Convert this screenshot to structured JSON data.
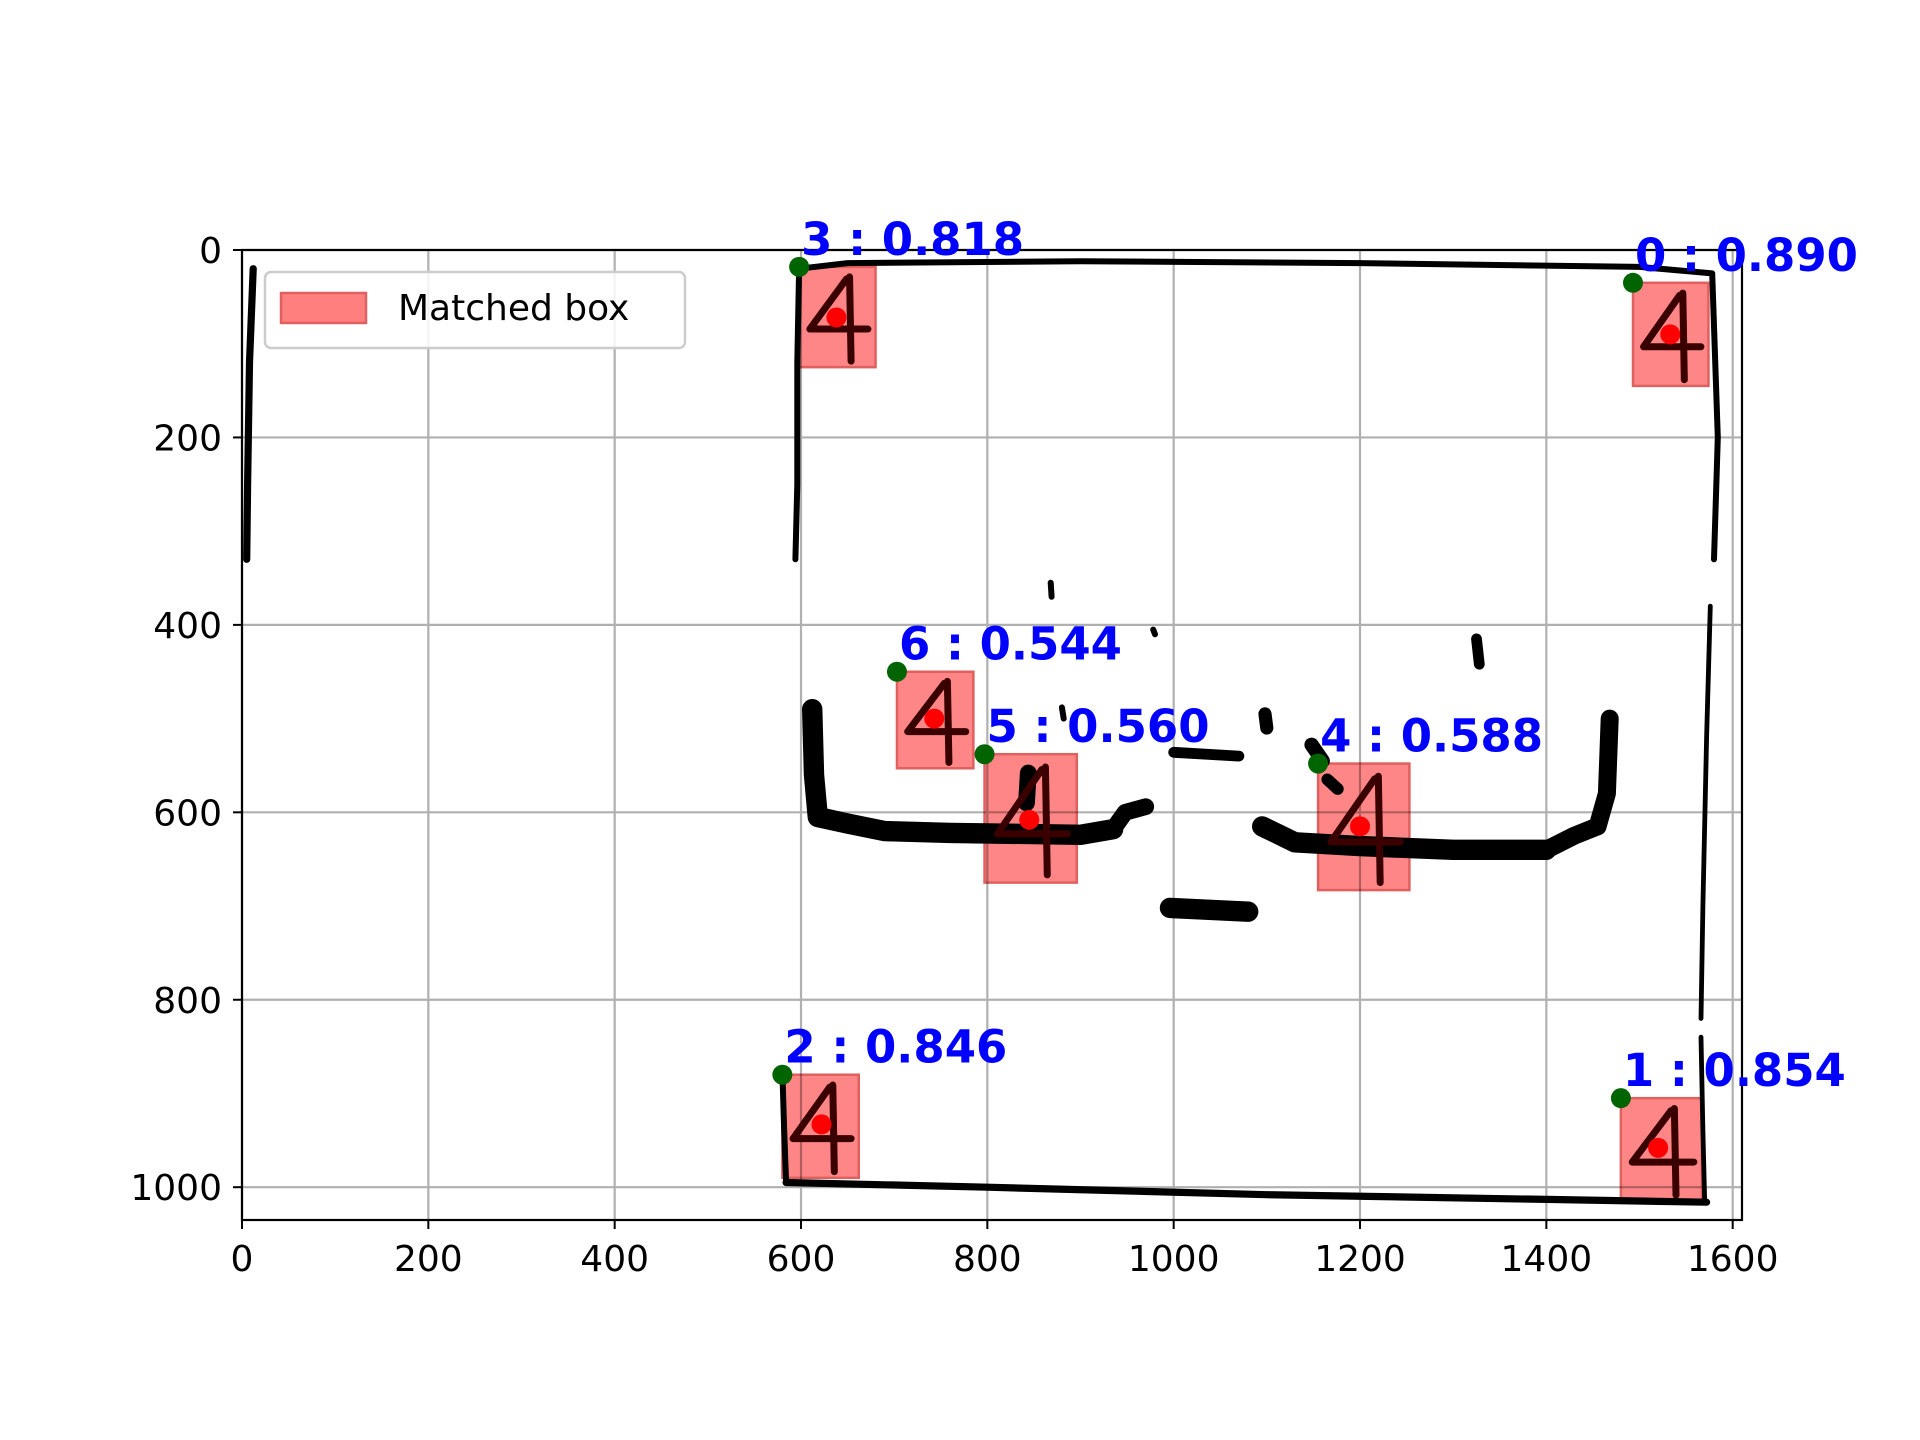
{
  "chart_data": {
    "type": "scatter",
    "title": "",
    "xlabel": "",
    "ylabel": "",
    "xlim": [
      0,
      1610
    ],
    "ylim": [
      1035,
      0
    ],
    "y_inverted": true,
    "xticks": [
      0,
      200,
      400,
      600,
      800,
      1000,
      1200,
      1400,
      1600
    ],
    "yticks": [
      0,
      200,
      400,
      600,
      800,
      1000
    ],
    "grid": true,
    "legend": {
      "placement": "top-left",
      "entries": [
        "Matched box"
      ]
    },
    "colors": {
      "box_fill": "#ff7f7f",
      "box_edge": "#e06060",
      "corner_point": "#006400",
      "center_point": "#ff0000",
      "annotation_text": "#0000ff"
    },
    "matches": [
      {
        "index": 0,
        "score": 0.89,
        "label": "0 : 0.890",
        "x0": 1493,
        "y0": 35,
        "x1": 1574,
        "y1": 145,
        "cx": 1533,
        "cy": 90
      },
      {
        "index": 1,
        "score": 0.854,
        "label": "1 : 0.854",
        "x0": 1480,
        "y0": 905,
        "x1": 1567,
        "y1": 1015,
        "cx": 1520,
        "cy": 958
      },
      {
        "index": 2,
        "score": 0.846,
        "label": "2 : 0.846",
        "x0": 580,
        "y0": 880,
        "x1": 662,
        "y1": 990,
        "cx": 622,
        "cy": 933
      },
      {
        "index": 3,
        "score": 0.818,
        "label": "3 : 0.818",
        "x0": 598,
        "y0": 18,
        "x1": 680,
        "y1": 125,
        "cx": 638,
        "cy": 72
      },
      {
        "index": 4,
        "score": 0.588,
        "label": "4 : 0.588",
        "x0": 1155,
        "y0": 548,
        "x1": 1253,
        "y1": 683,
        "cx": 1200,
        "cy": 615
      },
      {
        "index": 5,
        "score": 0.56,
        "label": "5 : 0.560",
        "x0": 797,
        "y0": 538,
        "x1": 896,
        "y1": 675,
        "cx": 845,
        "cy": 608
      },
      {
        "index": 6,
        "score": 0.544,
        "label": "6 : 0.544",
        "x0": 703,
        "y0": 450,
        "x1": 785,
        "y1": 553,
        "cx": 743,
        "cy": 500
      }
    ]
  }
}
